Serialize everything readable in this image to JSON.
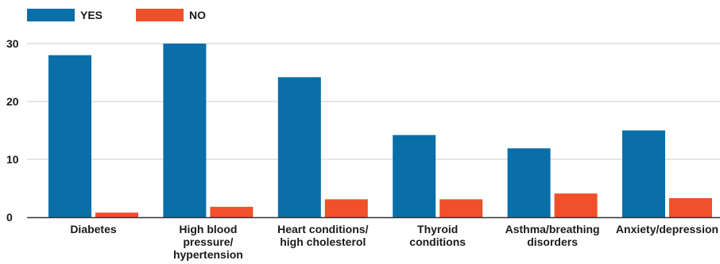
{
  "chart_data": {
    "type": "bar",
    "title": "",
    "xlabel": "",
    "ylabel": "",
    "categories": [
      [
        "Diabetes"
      ],
      [
        "High blood",
        "pressure/",
        "hypertension"
      ],
      [
        "Heart conditions/",
        "high cholesterol"
      ],
      [
        "Thyroid",
        "conditions"
      ],
      [
        "Asthma/breathing",
        "disorders"
      ],
      [
        "Anxiety/depression"
      ]
    ],
    "series": [
      {
        "name": "YES",
        "color": "#0A6EA8",
        "values": [
          28,
          30,
          24.2,
          14.2,
          11.9,
          15
        ]
      },
      {
        "name": "NO",
        "color": "#F0502A",
        "values": [
          0.8,
          1.8,
          3.1,
          3.1,
          4.1,
          3.3
        ]
      }
    ],
    "ylim": [
      0,
      30
    ],
    "yticks": [
      "0",
      "10",
      "20",
      "30"
    ],
    "ytick_values": [
      0,
      10,
      20,
      30
    ],
    "grid": true,
    "legend_position": "top-left",
    "grid_color": "#cccccc",
    "axis_color": "#333333"
  }
}
